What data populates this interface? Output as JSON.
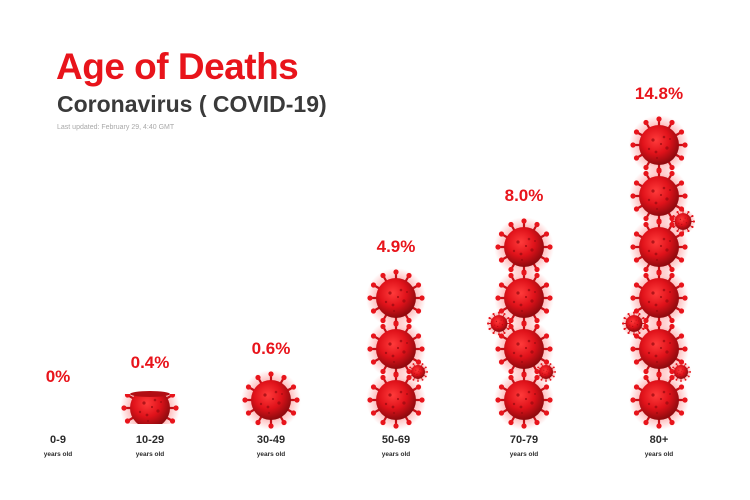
{
  "header": {
    "title": "Age of Deaths",
    "subtitle": "Coronavirus ( COVID-19)",
    "updated": "Last updated: February 29, 4:40 GMT"
  },
  "colors": {
    "accent": "#e8141b",
    "virus_dark": "#8e0a0e",
    "text_dark": "#2b2b2b"
  },
  "icons": [
    "coronavirus-icon"
  ],
  "chart_data": {
    "type": "bar",
    "title": "Age of Deaths",
    "subtitle": "Coronavirus ( COVID-19)",
    "categories": [
      "0-9",
      "10-29",
      "30-49",
      "50-69",
      "70-79",
      "80+"
    ],
    "category_sublabel": "years old",
    "values": [
      0,
      0.4,
      0.6,
      4.9,
      8.0,
      14.8
    ],
    "value_labels": [
      "0%",
      "0.4%",
      "0.6%",
      "4.9%",
      "8.0%",
      "14.8%"
    ],
    "unit": "%",
    "grid": false,
    "legend": "none"
  }
}
